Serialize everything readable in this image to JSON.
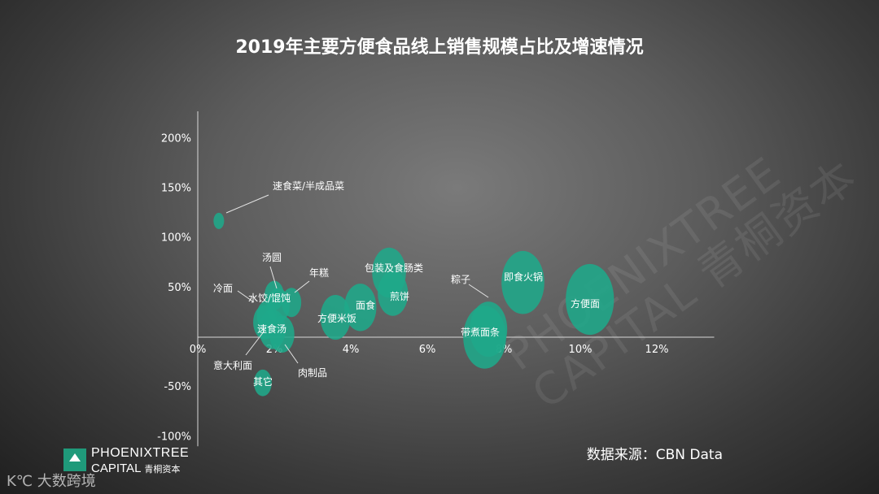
{
  "chart_data": {
    "type": "bubble",
    "title": "2019年主要方便食品线上销售规模占比及增速情况",
    "xlabel": "",
    "ylabel": "",
    "x_ticks": [
      "0%",
      "2%",
      "4%",
      "6%",
      "8%",
      "10%",
      "12%"
    ],
    "y_ticks": [
      "200%",
      "150%",
      "100%",
      "50%",
      "-50%",
      "-100%"
    ],
    "xlim": [
      0,
      13.5
    ],
    "ylim": [
      -100,
      215
    ],
    "bubble_color": "#1fa88a",
    "points": [
      {
        "name": "速食菜/半成品菜",
        "x": 0.55,
        "y": 117,
        "size": 0.5
      },
      {
        "name": "汤圆",
        "x": 2.0,
        "y": 42,
        "size": 1.0
      },
      {
        "name": "年糕",
        "x": 2.45,
        "y": 35,
        "size": 1.0
      },
      {
        "name": "冷面",
        "x": 1.8,
        "y": 22,
        "size": 1.0
      },
      {
        "name": "水饺/馄饨",
        "x": 2.1,
        "y": 32,
        "size": 1.2
      },
      {
        "name": "意大利面",
        "x": 1.75,
        "y": 15,
        "size": 1.2
      },
      {
        "name": "速食汤",
        "x": 1.95,
        "y": 8,
        "size": 1.4
      },
      {
        "name": "肉制品",
        "x": 2.2,
        "y": 3,
        "size": 1.3
      },
      {
        "name": "其它",
        "x": 1.7,
        "y": -46,
        "size": 0.9
      },
      {
        "name": "方便米饭",
        "x": 3.6,
        "y": 20,
        "size": 1.6
      },
      {
        "name": "面食",
        "x": 4.25,
        "y": 30,
        "size": 1.7
      },
      {
        "name": "包装及食肠类",
        "x": 5.0,
        "y": 65,
        "size": 1.8
      },
      {
        "name": "煎饼",
        "x": 5.1,
        "y": 44,
        "size": 1.6
      },
      {
        "name": "粽子",
        "x": 7.6,
        "y": 8,
        "size": 2.0
      },
      {
        "name": "带煮面条",
        "x": 7.5,
        "y": 0,
        "size": 2.3
      },
      {
        "name": "即食火锅",
        "x": 8.5,
        "y": 55,
        "size": 2.3
      },
      {
        "name": "方便面",
        "x": 10.25,
        "y": 38,
        "size": 2.6
      }
    ],
    "annotations": [
      "速食菜/半成品菜",
      "汤圆",
      "年糕",
      "冷面",
      "水饺/馄饨",
      "意大利面",
      "速食汤",
      "肉制品",
      "其它",
      "方便米饭",
      "面食",
      "包装及食肠类",
      "煎饼",
      "粽子",
      "带煮面条",
      "即食火锅",
      "方便面"
    ]
  },
  "source": "数据来源：CBN Data",
  "watermark": {
    "line1": "PHOENIXTREE",
    "line2": "CAPITAL 青桐资本"
  },
  "logo": {
    "name": "PHOENIXTREE",
    "name2": "CAPITAL",
    "cn": "青桐资本"
  },
  "corner_mark": "K℃ 大数跨境"
}
